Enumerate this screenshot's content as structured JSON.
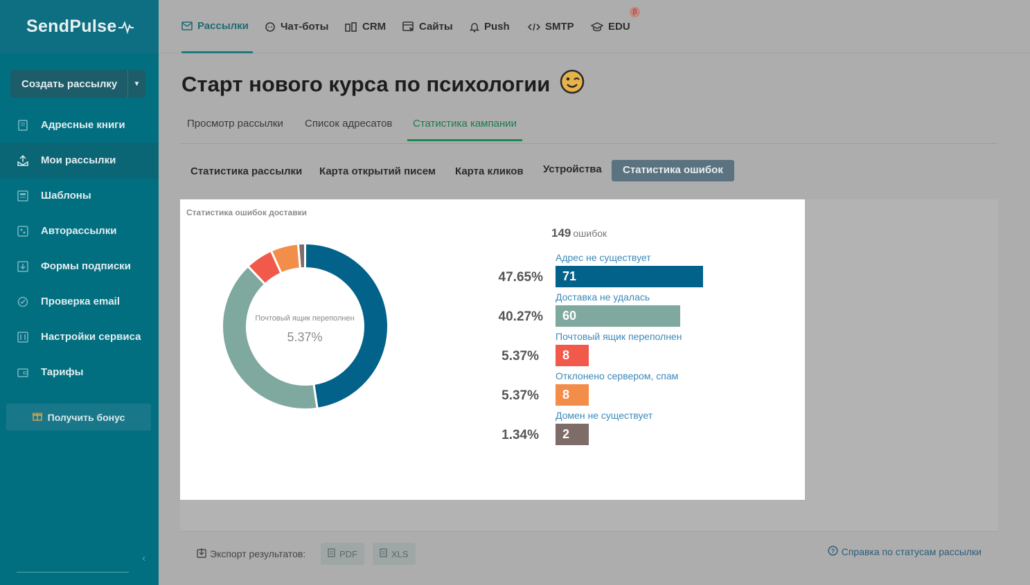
{
  "sidebar": {
    "logo": "SendPulse",
    "create_button": "Создать рассылку",
    "items": [
      {
        "label": "Адресные книги"
      },
      {
        "label": "Мои рассылки"
      },
      {
        "label": "Шаблоны"
      },
      {
        "label": "Авторассылки"
      },
      {
        "label": "Формы подписки"
      },
      {
        "label": "Проверка email"
      },
      {
        "label": "Настройки сервиса"
      },
      {
        "label": "Тарифы"
      }
    ],
    "bonus_button": "Получить бонус"
  },
  "topnav": {
    "items": [
      {
        "label": "Рассылки"
      },
      {
        "label": "Чат-боты"
      },
      {
        "label": "CRM"
      },
      {
        "label": "Сайты"
      },
      {
        "label": "Push"
      },
      {
        "label": "SMTP"
      },
      {
        "label": "EDU"
      }
    ],
    "beta": "β"
  },
  "page": {
    "title": "Старт нового курса по психологии",
    "tabs": [
      {
        "label": "Просмотр рассылки"
      },
      {
        "label": "Список адресатов"
      },
      {
        "label": "Статистика кампании"
      }
    ],
    "subtabs": [
      {
        "label": "Статистика рассылки"
      },
      {
        "label": "Карта открытий писем"
      },
      {
        "label": "Карта кликов"
      },
      {
        "label": "Устройства"
      },
      {
        "label": "Статистика ошибок"
      }
    ]
  },
  "errors": {
    "panel_title": "Статистика ошибок доставки",
    "total": "149",
    "total_label": "ошибок",
    "center_label": "Почтовый ящик переполнен",
    "center_value": "5.37%"
  },
  "chart_data": {
    "type": "pie",
    "categories": [
      "Адрес не существует",
      "Доставка не удалась",
      "Почтовый ящик переполнен",
      "Отклонено сервером, спам",
      "Домен не существует"
    ],
    "values": [
      71,
      60,
      8,
      8,
      2
    ],
    "percents": [
      "47.65%",
      "40.27%",
      "5.37%",
      "5.37%",
      "1.34%"
    ],
    "colors": [
      "#03628a",
      "#7fa89e",
      "#f1594b",
      "#f28d4a",
      "#7d6c68"
    ]
  },
  "export": {
    "label": "Экспорт результатов:",
    "pdf": "PDF",
    "xls": "XLS",
    "help": "Справка по статусам рассылки"
  }
}
